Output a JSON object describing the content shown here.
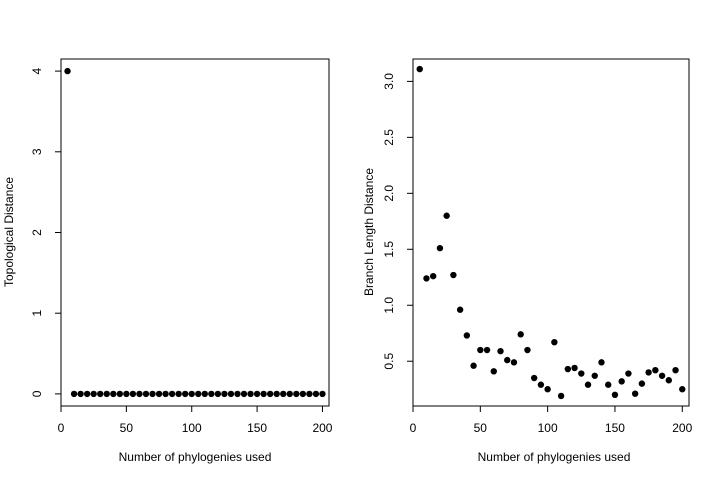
{
  "chart_data": [
    {
      "type": "scatter",
      "title": "",
      "xlabel": "Number of phylogenies used",
      "ylabel": "Topological Distance",
      "xlim": [
        0,
        205
      ],
      "ylim": [
        -0.15,
        4.15
      ],
      "xticks": [
        0,
        50,
        100,
        150,
        200
      ],
      "yticks": [
        0,
        1,
        2,
        3,
        4
      ],
      "xtick_labels": [
        "0",
        "50",
        "100",
        "150",
        "200"
      ],
      "ytick_labels": [
        "0",
        "1",
        "2",
        "3",
        "4"
      ],
      "grid": false,
      "legend": "none",
      "marker_color": "#000000",
      "x": [
        5,
        10,
        15,
        20,
        25,
        30,
        35,
        40,
        45,
        50,
        55,
        60,
        65,
        70,
        75,
        80,
        85,
        90,
        95,
        100,
        105,
        110,
        115,
        120,
        125,
        130,
        135,
        140,
        145,
        150,
        155,
        160,
        165,
        170,
        175,
        180,
        185,
        190,
        195,
        200
      ],
      "y": [
        4,
        0,
        0,
        0,
        0,
        0,
        0,
        0,
        0,
        0,
        0,
        0,
        0,
        0,
        0,
        0,
        0,
        0,
        0,
        0,
        0,
        0,
        0,
        0,
        0,
        0,
        0,
        0,
        0,
        0,
        0,
        0,
        0,
        0,
        0,
        0,
        0,
        0,
        0,
        0
      ]
    },
    {
      "type": "scatter",
      "title": "",
      "xlabel": "Number of phylogenies used",
      "ylabel": "Branch Length Distance",
      "xlim": [
        0,
        205
      ],
      "ylim": [
        0.1,
        3.2
      ],
      "xticks": [
        0,
        50,
        100,
        150,
        200
      ],
      "yticks": [
        0.5,
        1.0,
        1.5,
        2.0,
        2.5,
        3.0
      ],
      "xtick_labels": [
        "0",
        "50",
        "100",
        "150",
        "200"
      ],
      "ytick_labels": [
        "0.5",
        "1.0",
        "1.5",
        "2.0",
        "2.5",
        "3.0"
      ],
      "grid": false,
      "legend": "none",
      "marker_color": "#000000",
      "x": [
        5,
        10,
        15,
        20,
        25,
        30,
        35,
        40,
        45,
        50,
        55,
        60,
        65,
        70,
        75,
        80,
        85,
        90,
        95,
        100,
        105,
        110,
        115,
        120,
        125,
        130,
        135,
        140,
        145,
        150,
        155,
        160,
        165,
        170,
        175,
        180,
        185,
        190,
        195,
        200
      ],
      "y": [
        3.11,
        1.24,
        1.26,
        1.51,
        1.8,
        1.27,
        0.96,
        0.73,
        0.46,
        0.6,
        0.6,
        0.41,
        0.59,
        0.51,
        0.49,
        0.74,
        0.6,
        0.35,
        0.29,
        0.25,
        0.67,
        0.19,
        0.43,
        0.44,
        0.39,
        0.29,
        0.37,
        0.49,
        0.29,
        0.2,
        0.32,
        0.39,
        0.21,
        0.3,
        0.4,
        0.42,
        0.37,
        0.33,
        0.42,
        0.25
      ]
    }
  ]
}
